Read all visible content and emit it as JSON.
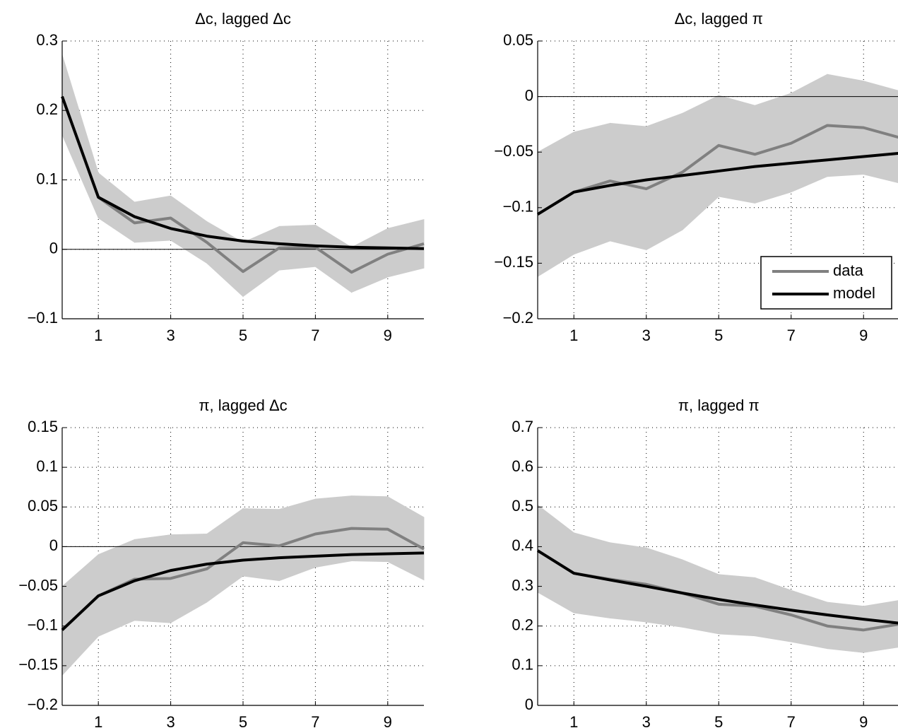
{
  "chart_data": [
    {
      "type": "line",
      "title": "Δc, lagged Δc",
      "x": [
        0,
        1,
        2,
        3,
        4,
        5,
        6,
        7,
        8,
        9,
        10
      ],
      "xlim": [
        0,
        10
      ],
      "xticks": [
        1,
        3,
        5,
        7,
        9
      ],
      "ylim": [
        -0.1,
        0.3
      ],
      "yticks": [
        {
          "value": -0.1,
          "label": "−0.1"
        },
        0,
        0.1,
        0.2,
        0.3
      ],
      "grid": true,
      "band": {
        "color": "#cccccc",
        "lower": [
          0.165,
          0.045,
          0.01,
          0.013,
          -0.02,
          -0.068,
          -0.03,
          -0.025,
          -0.062,
          -0.04,
          -0.027
        ],
        "upper": [
          0.28,
          0.11,
          0.068,
          0.077,
          0.04,
          0.01,
          0.033,
          0.035,
          0.003,
          0.03,
          0.043
        ]
      },
      "series": [
        {
          "color": "#808080",
          "values": [
            0.22,
            0.075,
            0.038,
            0.045,
            0.01,
            -0.032,
            0.002,
            0.003,
            -0.033,
            -0.007,
            0.008
          ]
        },
        {
          "color": "#000000",
          "values": [
            0.22,
            0.075,
            0.047,
            0.03,
            0.019,
            0.012,
            0.008,
            0.005,
            0.003,
            0.002,
            0.001
          ]
        }
      ]
    },
    {
      "type": "line",
      "title": "Δc, lagged π",
      "x": [
        0,
        1,
        2,
        3,
        4,
        5,
        6,
        7,
        8,
        9,
        10
      ],
      "xlim": [
        0,
        10
      ],
      "xticks": [
        1,
        3,
        5,
        7,
        9
      ],
      "ylim": [
        -0.2,
        0.05
      ],
      "yticks": [
        {
          "value": -0.2,
          "label": "−0.2"
        },
        {
          "value": -0.15,
          "label": "−0.15"
        },
        {
          "value": -0.1,
          "label": "−0.1"
        },
        {
          "value": -0.05,
          "label": "−0.05"
        },
        0,
        0.05
      ],
      "grid": true,
      "legend": "lower right",
      "band": {
        "color": "#cccccc",
        "lower": [
          -0.162,
          -0.142,
          -0.13,
          -0.138,
          -0.12,
          -0.09,
          -0.096,
          -0.086,
          -0.072,
          -0.07,
          -0.078
        ],
        "upper": [
          -0.05,
          -0.032,
          -0.024,
          -0.027,
          -0.015,
          0.001,
          -0.008,
          0.003,
          0.02,
          0.014,
          0.005
        ]
      },
      "series": [
        {
          "name": "data",
          "color": "#808080",
          "values": [
            -0.106,
            -0.086,
            -0.076,
            -0.083,
            -0.068,
            -0.044,
            -0.052,
            -0.042,
            -0.026,
            -0.028,
            -0.037
          ]
        },
        {
          "name": "model",
          "color": "#000000",
          "values": [
            -0.106,
            -0.086,
            -0.08,
            -0.075,
            -0.071,
            -0.067,
            -0.063,
            -0.06,
            -0.057,
            -0.054,
            -0.051
          ]
        }
      ]
    },
    {
      "type": "line",
      "title": "π, lagged Δc",
      "x": [
        0,
        1,
        2,
        3,
        4,
        5,
        6,
        7,
        8,
        9,
        10
      ],
      "xlim": [
        0,
        10
      ],
      "xticks": [
        1,
        3,
        5,
        7,
        9
      ],
      "ylim": [
        -0.2,
        0.15
      ],
      "yticks": [
        {
          "value": -0.2,
          "label": "−0.2"
        },
        {
          "value": -0.15,
          "label": "−0.15"
        },
        {
          "value": -0.1,
          "label": "−0.1"
        },
        {
          "value": -0.05,
          "label": "−0.05"
        },
        0,
        0.05,
        0.1,
        0.15
      ],
      "grid": true,
      "band": {
        "color": "#cccccc",
        "lower": [
          -0.162,
          -0.113,
          -0.093,
          -0.096,
          -0.07,
          -0.037,
          -0.043,
          -0.026,
          -0.018,
          -0.019,
          -0.042
        ],
        "upper": [
          -0.05,
          -0.01,
          0.009,
          0.015,
          0.016,
          0.048,
          0.047,
          0.06,
          0.064,
          0.063,
          0.037
        ]
      },
      "series": [
        {
          "color": "#808080",
          "values": [
            -0.105,
            -0.062,
            -0.041,
            -0.04,
            -0.028,
            0.005,
            0.001,
            0.016,
            0.023,
            0.022,
            -0.003
          ]
        },
        {
          "color": "#000000",
          "values": [
            -0.105,
            -0.062,
            -0.043,
            -0.03,
            -0.022,
            -0.017,
            -0.014,
            -0.012,
            -0.01,
            -0.009,
            -0.008
          ]
        }
      ]
    },
    {
      "type": "line",
      "title": "π, lagged π",
      "x": [
        0,
        1,
        2,
        3,
        4,
        5,
        6,
        7,
        8,
        9,
        10
      ],
      "xlim": [
        0,
        10
      ],
      "xticks": [
        1,
        3,
        5,
        7,
        9
      ],
      "ylim": [
        0,
        0.7
      ],
      "yticks": [
        0,
        0.1,
        0.2,
        0.3,
        0.4,
        0.5,
        0.6,
        0.7
      ],
      "grid": true,
      "band": {
        "color": "#cccccc",
        "lower": [
          0.285,
          0.233,
          0.22,
          0.21,
          0.197,
          0.18,
          0.175,
          0.16,
          0.143,
          0.133,
          0.147
        ],
        "upper": [
          0.505,
          0.435,
          0.41,
          0.397,
          0.367,
          0.33,
          0.322,
          0.29,
          0.26,
          0.25,
          0.265
        ]
      },
      "series": [
        {
          "color": "#808080",
          "values": [
            0.39,
            0.333,
            0.318,
            0.305,
            0.283,
            0.255,
            0.25,
            0.228,
            0.2,
            0.19,
            0.205
          ]
        },
        {
          "color": "#000000",
          "values": [
            0.39,
            0.333,
            0.316,
            0.3,
            0.283,
            0.267,
            0.253,
            0.24,
            0.228,
            0.217,
            0.207
          ]
        }
      ]
    }
  ]
}
